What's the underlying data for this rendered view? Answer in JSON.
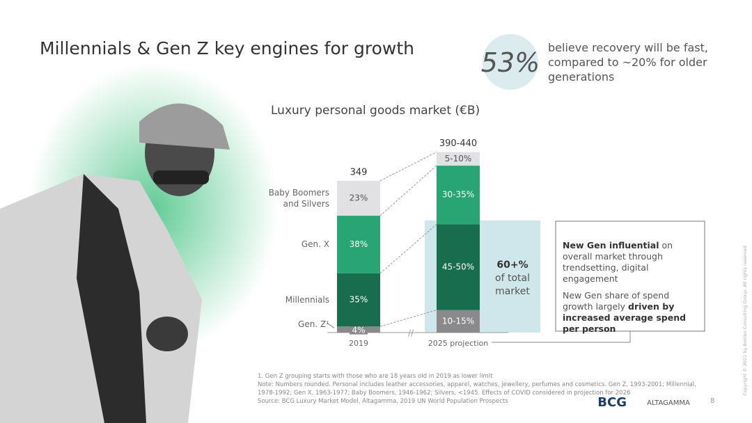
{
  "header": {
    "title": "Millennials & Gen Z key engines for growth"
  },
  "stat": {
    "value": "53%",
    "text": "believe recovery will be fast, compared to ~20% for older generations"
  },
  "chart_data": {
    "type": "bar",
    "stacked": true,
    "title": "Luxury personal goods market (€B)",
    "categories": [
      "2019",
      "2025 projection"
    ],
    "totals": {
      "values": [
        349,
        415
      ],
      "value_labels": [
        "349",
        "390-440"
      ]
    },
    "series": [
      {
        "name": "Gen. Z¹",
        "color": "#8a8a8c",
        "label_color": "#ffffff",
        "values": [
          4,
          12.5
        ],
        "value_labels": [
          "4%",
          "10-15%"
        ]
      },
      {
        "name": "Millennials",
        "color": "#196d4f",
        "label_color": "#ffffff",
        "values": [
          35,
          47.5
        ],
        "value_labels": [
          "35%",
          "45-50%"
        ]
      },
      {
        "name": "Gen. X",
        "color": "#29a473",
        "label_color": "#ffffff",
        "values": [
          38,
          32.5
        ],
        "value_labels": [
          "38%",
          "30-35%"
        ]
      },
      {
        "name": "Baby Boomers and Silvers",
        "color": "#e1e0e3",
        "label_color": "#555555",
        "values": [
          23,
          7.5
        ],
        "value_labels": [
          "23%",
          "5-10%"
        ]
      }
    ],
    "annotation": {
      "value": "60+%",
      "text": "of total market"
    }
  },
  "callout": {
    "p1": [
      "New Gen influential",
      " on overall market through trendsetting, digital engagement"
    ],
    "p2": [
      "New Gen share of spend growth largely ",
      "driven by increased average spend per person"
    ]
  },
  "notes": [
    "1. Gen Z grouping starts with those who are 18 years old in 2019 as lower limit",
    "Note: Numbers rounded. Personal includes leather accessories, apparel, watches, jewellery, perfumes and cosmetics. Gen Z, 1993-2001; Millennial, 1978-1992; Gen X, 1963-1977; Baby Boomers, 1946-1962; Silvers, <1945. Effects of COVID considered in projection for 2026",
    "Source: BCG Luxury Market Model, Altagamma, 2019 UN World Population Prospects"
  ],
  "footer": {
    "logo1": "BCG",
    "logo2": "ALTAGAMMA",
    "page": "8",
    "copyright": "Copyright © 2021 by Boston Consulting Group. All rights reserved."
  }
}
